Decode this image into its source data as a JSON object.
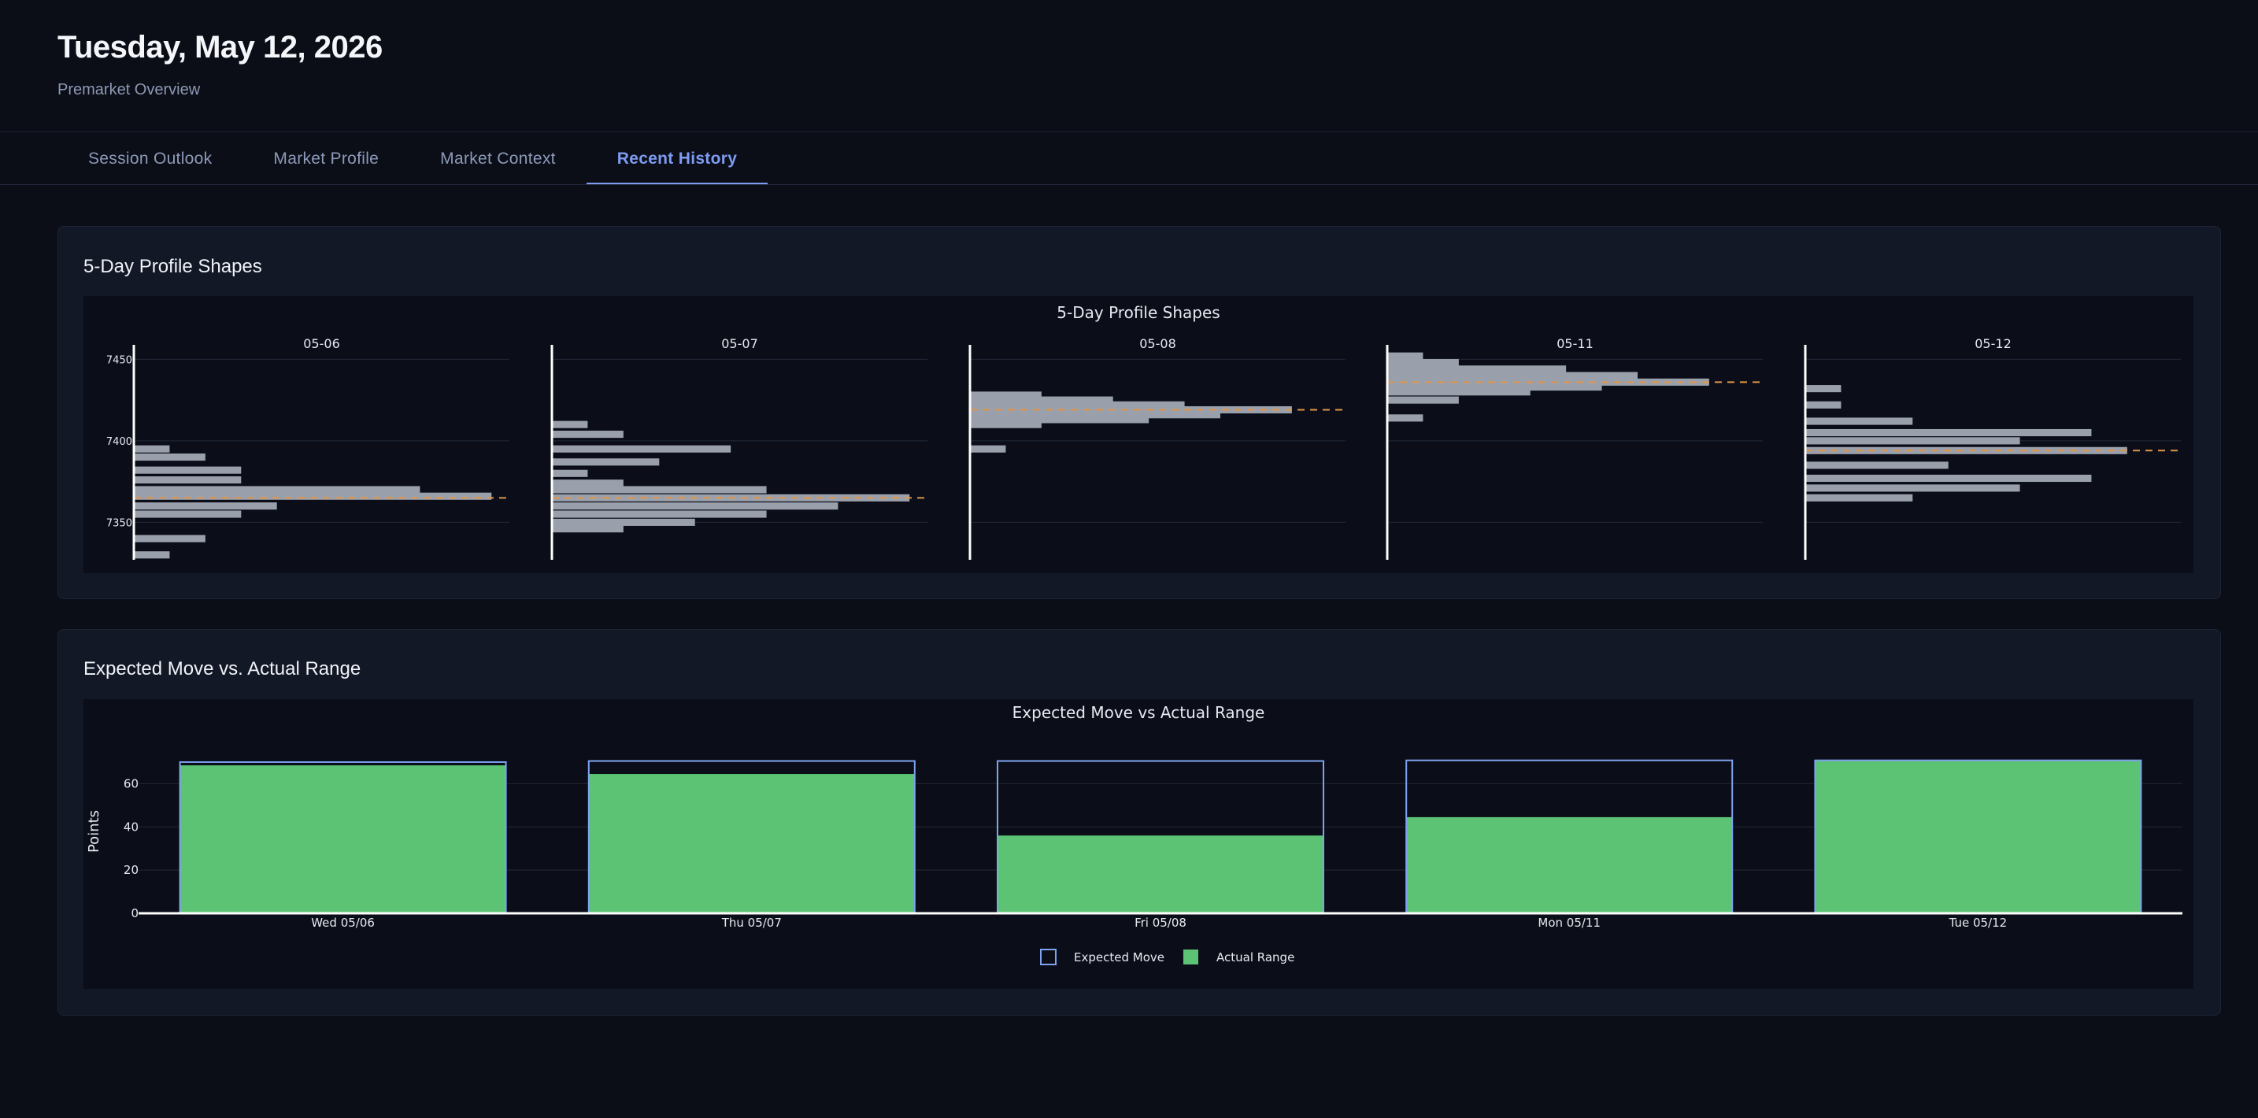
{
  "header": {
    "title": "Tuesday, May 12, 2026",
    "subtitle": "Premarket Overview"
  },
  "tabs": [
    {
      "label": "Session Outlook",
      "active": false
    },
    {
      "label": "Market Profile",
      "active": false
    },
    {
      "label": "Market Context",
      "active": false
    },
    {
      "label": "Recent History",
      "active": true
    }
  ],
  "profile_card": {
    "heading": "5-Day Profile Shapes"
  },
  "range_card": {
    "heading": "Expected Move vs. Actual Range"
  },
  "colors": {
    "profile_bar": "#9aa0ab",
    "poc_line": "#e0954a",
    "expected_outline": "#7fa3f0",
    "actual_fill": "#5cc375",
    "axis_line": "#ffffff",
    "grid": "#222838"
  },
  "chart_data": [
    {
      "type": "bar",
      "orientation": "horizontal",
      "title": "5-Day Profile Shapes",
      "y_ticks": [
        7350,
        7400,
        7450
      ],
      "ylim": [
        7327,
        7455
      ],
      "xlim": [
        0,
        10.5
      ],
      "panels": [
        {
          "label": "05-06",
          "poc": 7365,
          "levels": [
            {
              "price": 7330,
              "tpo": 1
            },
            {
              "price": 7340,
              "tpo": 2
            },
            {
              "price": 7355,
              "tpo": 3
            },
            {
              "price": 7360,
              "tpo": 4
            },
            {
              "price": 7366,
              "tpo": 10
            },
            {
              "price": 7370,
              "tpo": 8
            },
            {
              "price": 7376,
              "tpo": 3
            },
            {
              "price": 7382,
              "tpo": 3
            },
            {
              "price": 7390,
              "tpo": 2
            },
            {
              "price": 7395,
              "tpo": 1
            }
          ]
        },
        {
          "label": "05-07",
          "poc": 7365,
          "levels": [
            {
              "price": 7346,
              "tpo": 2
            },
            {
              "price": 7350,
              "tpo": 4
            },
            {
              "price": 7355,
              "tpo": 6
            },
            {
              "price": 7360,
              "tpo": 8
            },
            {
              "price": 7365,
              "tpo": 10
            },
            {
              "price": 7370,
              "tpo": 6
            },
            {
              "price": 7374,
              "tpo": 2
            },
            {
              "price": 7380,
              "tpo": 1
            },
            {
              "price": 7387,
              "tpo": 3
            },
            {
              "price": 7395,
              "tpo": 5
            },
            {
              "price": 7404,
              "tpo": 2
            },
            {
              "price": 7410,
              "tpo": 1
            }
          ]
        },
        {
          "label": "05-08",
          "poc": 7419,
          "levels": [
            {
              "price": 7395,
              "tpo": 1
            },
            {
              "price": 7410,
              "tpo": 2
            },
            {
              "price": 7413,
              "tpo": 5
            },
            {
              "price": 7416,
              "tpo": 7
            },
            {
              "price": 7419,
              "tpo": 9
            },
            {
              "price": 7422,
              "tpo": 6
            },
            {
              "price": 7425,
              "tpo": 4
            },
            {
              "price": 7428,
              "tpo": 2
            }
          ]
        },
        {
          "label": "05-11",
          "poc": 7436,
          "levels": [
            {
              "price": 7414,
              "tpo": 1
            },
            {
              "price": 7425,
              "tpo": 2
            },
            {
              "price": 7430,
              "tpo": 4
            },
            {
              "price": 7433,
              "tpo": 6
            },
            {
              "price": 7436,
              "tpo": 9
            },
            {
              "price": 7440,
              "tpo": 7
            },
            {
              "price": 7444,
              "tpo": 5
            },
            {
              "price": 7448,
              "tpo": 2
            },
            {
              "price": 7452,
              "tpo": 1
            }
          ]
        },
        {
          "label": "05-12",
          "poc": 7394,
          "levels": [
            {
              "price": 7365,
              "tpo": 3
            },
            {
              "price": 7371,
              "tpo": 6
            },
            {
              "price": 7377,
              "tpo": 8
            },
            {
              "price": 7385,
              "tpo": 4
            },
            {
              "price": 7394,
              "tpo": 9
            },
            {
              "price": 7400,
              "tpo": 6
            },
            {
              "price": 7405,
              "tpo": 8
            },
            {
              "price": 7412,
              "tpo": 3
            },
            {
              "price": 7422,
              "tpo": 1
            },
            {
              "price": 7432,
              "tpo": 1
            }
          ]
        }
      ]
    },
    {
      "type": "bar",
      "title": "Expected Move vs Actual Range",
      "ylabel": "Points",
      "y_ticks": [
        0,
        20,
        40,
        60
      ],
      "ylim": [
        0,
        78
      ],
      "categories": [
        "Wed 05/06",
        "Thu 05/07",
        "Fri 05/08",
        "Mon 05/11",
        "Tue 05/12"
      ],
      "series": [
        {
          "name": "Expected Move",
          "style": "outline",
          "values": [
            70,
            70.5,
            70.5,
            70.8,
            70.8
          ]
        },
        {
          "name": "Actual Range",
          "style": "filled",
          "values": [
            68.5,
            64.5,
            36,
            44.5,
            70.5
          ]
        }
      ],
      "legend": "bottom-center"
    }
  ]
}
